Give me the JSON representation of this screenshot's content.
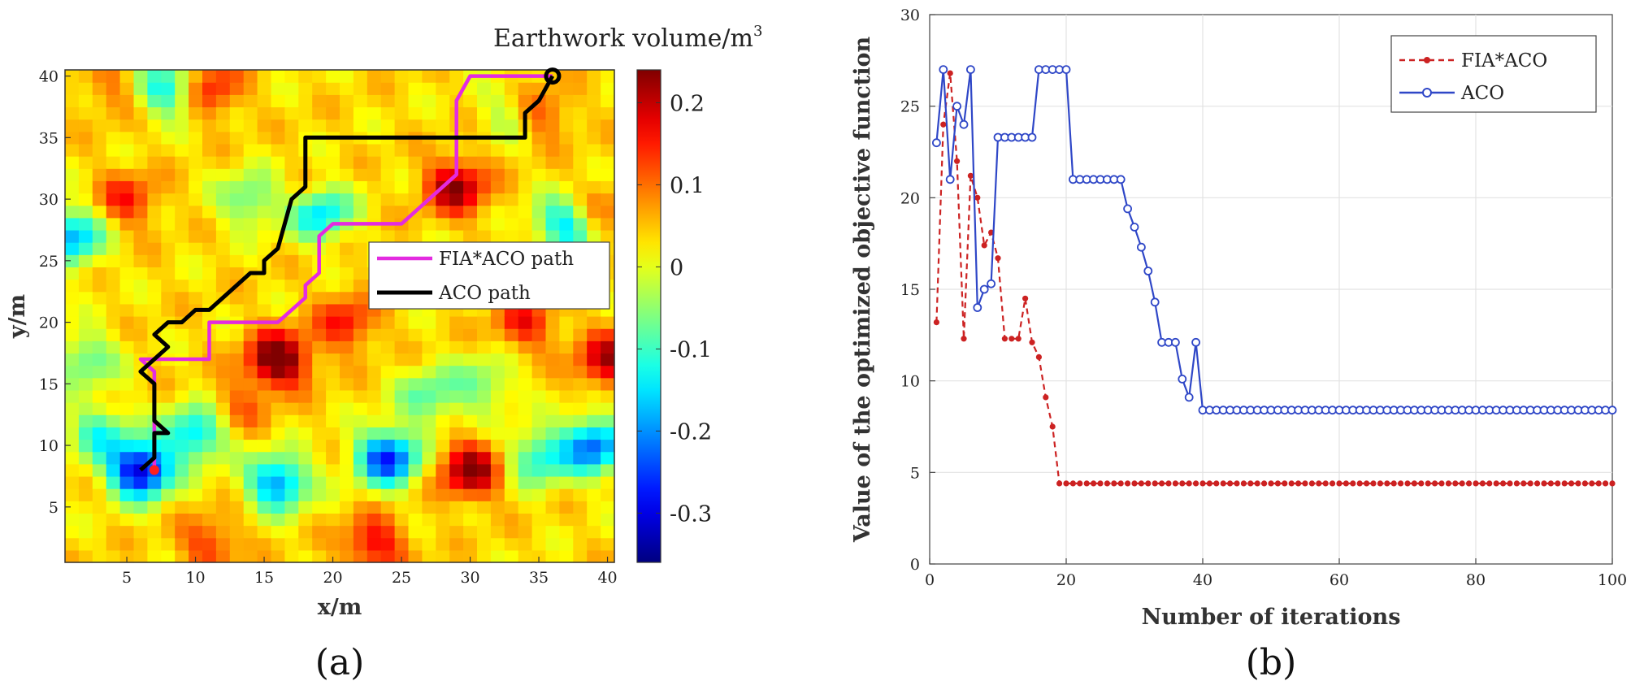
{
  "panels": [
    {
      "label": "(a)"
    },
    {
      "label": "(b)"
    }
  ],
  "chart_data": [
    {
      "type": "heatmap",
      "xlabel": "x/m",
      "ylabel": "y/m",
      "xlim": [
        0.5,
        40.5
      ],
      "ylim": [
        0.5,
        40.5
      ],
      "xticks": [
        5,
        10,
        15,
        20,
        25,
        30,
        35,
        40
      ],
      "yticks": [
        5,
        10,
        15,
        20,
        25,
        30,
        35,
        40
      ],
      "colorbar": {
        "title": "Earthwork volume/m",
        "title_sup": "3",
        "range": [
          -0.36,
          0.24
        ],
        "ticks": [
          0.2,
          0.1,
          0,
          -0.1,
          -0.2,
          -0.3
        ],
        "tick_labels": [
          "0.2",
          "0.1",
          "0",
          "-0.1",
          "-0.2",
          "-0.3"
        ]
      },
      "field_peaks": [
        [
          16,
          17,
          0.24
        ],
        [
          21,
          20,
          0.12
        ],
        [
          29,
          31,
          0.19
        ],
        [
          11,
          39,
          0.13
        ],
        [
          30,
          8,
          0.2
        ],
        [
          40,
          17,
          0.17
        ],
        [
          23,
          2,
          0.14
        ],
        [
          11,
          2,
          0.1
        ],
        [
          35,
          37,
          0.1
        ],
        [
          34,
          20,
          0.12
        ],
        [
          5,
          30,
          0.11
        ],
        [
          18,
          30,
          0.06
        ],
        [
          13,
          13,
          0.07
        ],
        [
          39,
          29,
          0.08
        ],
        [
          4,
          39,
          0.06
        ],
        [
          6,
          8,
          -0.36
        ],
        [
          10,
          11,
          -0.2
        ],
        [
          3,
          11,
          -0.14
        ],
        [
          16,
          7,
          -0.24
        ],
        [
          24,
          9,
          -0.3
        ],
        [
          35,
          9,
          -0.16
        ],
        [
          39,
          10,
          -0.26
        ],
        [
          19,
          29,
          -0.22
        ],
        [
          8,
          39,
          -0.18
        ],
        [
          1,
          27,
          -0.22
        ],
        [
          37,
          28,
          -0.2
        ],
        [
          14,
          30,
          -0.12
        ],
        [
          27,
          14,
          -0.12
        ],
        [
          2,
          17,
          -0.12
        ],
        [
          33,
          37,
          -0.08
        ],
        [
          31,
          15,
          -0.1
        ]
      ],
      "paths": [
        {
          "name": "FIA*ACO path",
          "color": "#e32be0",
          "points": [
            [
              7,
              8
            ],
            [
              7,
              12
            ],
            [
              7,
              16
            ],
            [
              6,
              17
            ],
            [
              10,
              17
            ],
            [
              11,
              17
            ],
            [
              11,
              20
            ],
            [
              15,
              20
            ],
            [
              16,
              20
            ],
            [
              18,
              22
            ],
            [
              18,
              23
            ],
            [
              19,
              24
            ],
            [
              19,
              27
            ],
            [
              20,
              28
            ],
            [
              25,
              28
            ],
            [
              29,
              32
            ],
            [
              29,
              38
            ],
            [
              30,
              40
            ],
            [
              36,
              40
            ]
          ]
        },
        {
          "name": "ACO path",
          "color": "#000000",
          "points": [
            [
              6,
              8
            ],
            [
              7,
              9
            ],
            [
              7,
              11
            ],
            [
              8,
              11
            ],
            [
              7,
              12
            ],
            [
              7,
              15
            ],
            [
              6,
              16
            ],
            [
              7,
              17
            ],
            [
              8,
              18
            ],
            [
              7,
              19
            ],
            [
              8,
              20
            ],
            [
              9,
              20
            ],
            [
              10,
              21
            ],
            [
              11,
              21
            ],
            [
              12,
              22
            ],
            [
              14,
              24
            ],
            [
              15,
              24
            ],
            [
              15,
              25
            ],
            [
              16,
              26
            ],
            [
              17,
              30
            ],
            [
              18,
              31
            ],
            [
              18,
              35
            ],
            [
              34,
              35
            ],
            [
              34,
              37
            ],
            [
              35,
              38
            ],
            [
              36,
              40
            ]
          ]
        }
      ],
      "start_marker": {
        "x": 7,
        "y": 8,
        "color": "#ff2020"
      },
      "end_marker": {
        "x": 36,
        "y": 40,
        "color": "#000000"
      },
      "legend_position": "center-right"
    },
    {
      "type": "line",
      "xlabel": "Number of iterations",
      "ylabel": "Value of the optimized objective function",
      "xlim": [
        0,
        100
      ],
      "ylim": [
        0,
        30
      ],
      "xticks": [
        0,
        20,
        40,
        60,
        80,
        100
      ],
      "yticks": [
        0,
        5,
        10,
        15,
        20,
        25,
        30
      ],
      "grid": true,
      "legend_position": "top-right",
      "series": [
        {
          "name": "FIA*ACO",
          "color": "#cc2222",
          "style": "dashed",
          "marker": "dot",
          "head": [
            [
              1,
              13.2
            ],
            [
              2,
              24
            ],
            [
              3,
              26.8
            ],
            [
              4,
              22
            ],
            [
              5,
              12.3
            ],
            [
              6,
              21.2
            ],
            [
              7,
              20
            ],
            [
              8,
              17.4
            ],
            [
              9,
              18.1
            ],
            [
              10,
              16.7
            ],
            [
              11,
              12.3
            ],
            [
              12,
              12.3
            ],
            [
              13,
              12.3
            ],
            [
              14,
              14.5
            ],
            [
              15,
              12.1
            ],
            [
              16,
              11.3
            ],
            [
              17,
              9.1
            ],
            [
              18,
              7.5
            ],
            [
              19,
              4.4
            ]
          ],
          "tail_from": 20,
          "tail_to": 100,
          "tail_value": 4.4
        },
        {
          "name": "ACO",
          "color": "#2f47c7",
          "style": "solid",
          "marker": "circle",
          "head": [
            [
              1,
              23
            ],
            [
              2,
              27
            ],
            [
              3,
              21
            ],
            [
              4,
              25
            ],
            [
              5,
              24
            ],
            [
              6,
              27
            ],
            [
              7,
              14
            ],
            [
              8,
              15
            ],
            [
              9,
              15.3
            ],
            [
              10,
              23.3
            ],
            [
              11,
              23.3
            ],
            [
              12,
              23.3
            ],
            [
              13,
              23.3
            ],
            [
              14,
              23.3
            ],
            [
              15,
              23.3
            ],
            [
              16,
              27
            ],
            [
              17,
              27
            ],
            [
              18,
              27
            ],
            [
              19,
              27
            ],
            [
              20,
              27
            ],
            [
              21,
              21
            ],
            [
              22,
              21
            ],
            [
              23,
              21
            ],
            [
              24,
              21
            ],
            [
              25,
              21
            ],
            [
              26,
              21
            ],
            [
              27,
              21
            ],
            [
              28,
              21
            ],
            [
              29,
              19.4
            ],
            [
              30,
              18.4
            ],
            [
              31,
              17.3
            ],
            [
              32,
              16
            ],
            [
              33,
              14.3
            ],
            [
              34,
              12.1
            ],
            [
              35,
              12.1
            ],
            [
              36,
              12.1
            ],
            [
              37,
              10.1
            ],
            [
              38,
              9.1
            ],
            [
              39,
              12.1
            ],
            [
              40,
              8.4
            ]
          ],
          "tail_from": 41,
          "tail_to": 100,
          "tail_value": 8.4
        }
      ]
    }
  ]
}
